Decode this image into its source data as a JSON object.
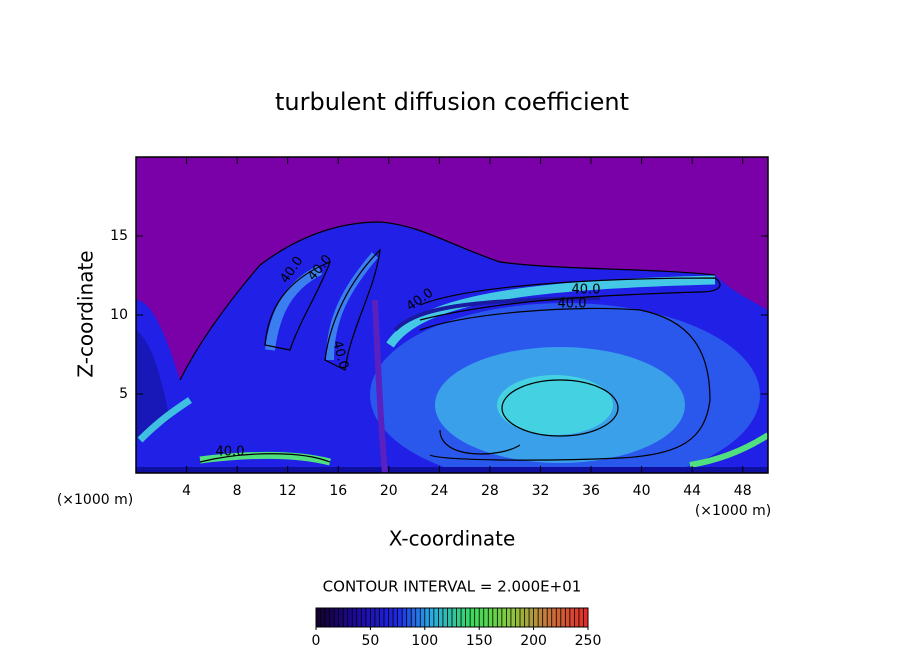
{
  "chart_data": {
    "type": "contour",
    "title": "turbulent diffusion coefficient",
    "x_label": "X-coordinate",
    "y_label": "Z-coordinate",
    "x_unit_labels": [
      "(×1000 m)",
      "(×1000 m)"
    ],
    "xlim": [
      0,
      50
    ],
    "xticks": [
      4,
      8,
      12,
      16,
      20,
      24,
      28,
      32,
      36,
      40,
      44,
      48
    ],
    "ylim": [
      0,
      20
    ],
    "yticks": [
      5,
      10,
      15
    ],
    "contour_labels": [
      "40.0",
      "40.0",
      "40.0",
      "40.0",
      "40.0",
      "40.0",
      "40.0"
    ],
    "contour_interval_label": "CONTOUR INTERVAL = 2.000E+01",
    "colorbar": {
      "lim": [
        0,
        250
      ],
      "ticks": [
        0,
        50,
        100,
        150,
        200,
        250
      ]
    }
  }
}
